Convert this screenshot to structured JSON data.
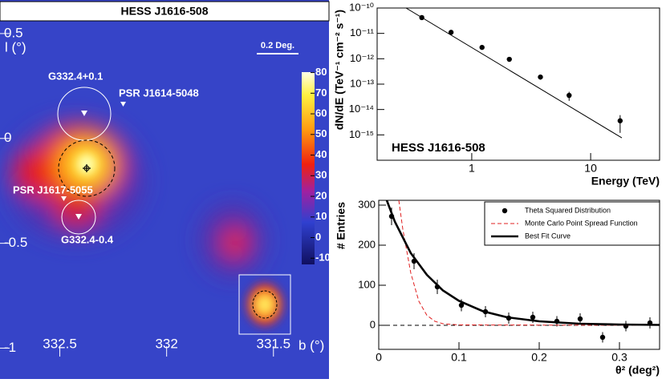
{
  "chart_data": [
    {
      "type": "heatmap",
      "title": "HESS J1616-508",
      "x_label": "b (°)",
      "y_label": "l (°)",
      "xlim": [
        332.78,
        331.24
      ],
      "ylim": [
        -1.04,
        0.66
      ],
      "xticks": [
        332.5,
        332,
        331.5
      ],
      "yticks": [
        0.5,
        0,
        -0.5,
        -1
      ],
      "clim": [
        -13,
        81
      ],
      "cticks": [
        -10,
        0,
        10,
        20,
        30,
        40,
        50,
        60,
        70,
        80
      ],
      "annotations": [
        "0.2 Deg.",
        "G332.4+0.1",
        "PSR J1614-5048",
        "PSR J1617-5055",
        "G332.4-0.4"
      ]
    },
    {
      "type": "scatter",
      "title": "HESS J1616-508",
      "x_label": "Energy (TeV)",
      "y_label": "dN/dE (TeV⁻¹ cm⁻² s⁻¹)",
      "log_x": true,
      "log_y": true,
      "xlim": [
        0.16,
        38
      ],
      "ylim": [
        1e-16,
        1e-10
      ],
      "xticks": [
        1,
        10
      ],
      "yticks": [
        {
          "value": 1e-10,
          "label": "10⁻¹⁰"
        },
        {
          "value": 1e-11,
          "label": "10⁻¹¹"
        },
        {
          "value": 1e-12,
          "label": "10⁻¹²"
        },
        {
          "value": 1e-13,
          "label": "10⁻¹³"
        },
        {
          "value": 1e-14,
          "label": "10⁻¹⁴"
        },
        {
          "value": 1e-15,
          "label": "10⁻¹⁵"
        }
      ],
      "series": [
        {
          "style": "points",
          "color": "#000000",
          "x": [
            0.38,
            0.67,
            1.22,
            2.07,
            3.78,
            6.59,
            17.7
          ],
          "values": [
            4.2e-11,
            1.1e-11,
            2.8e-12,
            9.5e-13,
            1.9e-13,
            3.6e-14,
            3.6e-15
          ],
          "errors": [
            6e-12,
            1.5e-12,
            4e-13,
            1.6e-13,
            4e-14,
            1.4e-14,
            2.4e-15
          ]
        },
        {
          "style": "line",
          "color": "#000000",
          "x": [
            0.28,
            18.3
          ],
          "values": [
            1e-10,
            7.6e-16
          ]
        }
      ]
    },
    {
      "type": "scatter",
      "x_label": "θ² (deg²)",
      "y_label": "# Entries",
      "xlim": [
        0,
        0.35
      ],
      "ylim": [
        -60,
        312
      ],
      "xticks": [
        0,
        0.1,
        0.2,
        0.3
      ],
      "yticks": [
        0,
        100,
        200,
        300
      ],
      "legend": "upper right",
      "series": [
        {
          "name": "Theta Squared Distribution",
          "style": "points",
          "color": "#000000",
          "x": [
            0.016,
            0.044,
            0.073,
            0.103,
            0.133,
            0.162,
            0.192,
            0.222,
            0.251,
            0.279,
            0.308,
            0.338
          ],
          "values": [
            272,
            160,
            96,
            50,
            34,
            18,
            20,
            10,
            16,
            -30,
            -2,
            6
          ],
          "errors": [
            22,
            20,
            18,
            15,
            14,
            14,
            14,
            13,
            14,
            13,
            13,
            14
          ]
        },
        {
          "name": "Monte Carlo Point Spread Function",
          "style": "dash",
          "color": "#e02020",
          "x": [
            0.025,
            0.03,
            0.04,
            0.05,
            0.06,
            0.07,
            0.08,
            0.1,
            0.35
          ],
          "values": [
            312,
            240,
            130,
            60,
            25,
            10,
            4,
            1,
            0
          ]
        },
        {
          "name": "Best Fit Curve",
          "style": "line",
          "color": "#000000",
          "x": [
            0.01,
            0.02,
            0.04,
            0.06,
            0.08,
            0.1,
            0.13,
            0.16,
            0.2,
            0.25,
            0.3,
            0.35
          ],
          "values": [
            312,
            259,
            180,
            126,
            87,
            61,
            35,
            20,
            10,
            4,
            2,
            1
          ]
        }
      ]
    }
  ]
}
